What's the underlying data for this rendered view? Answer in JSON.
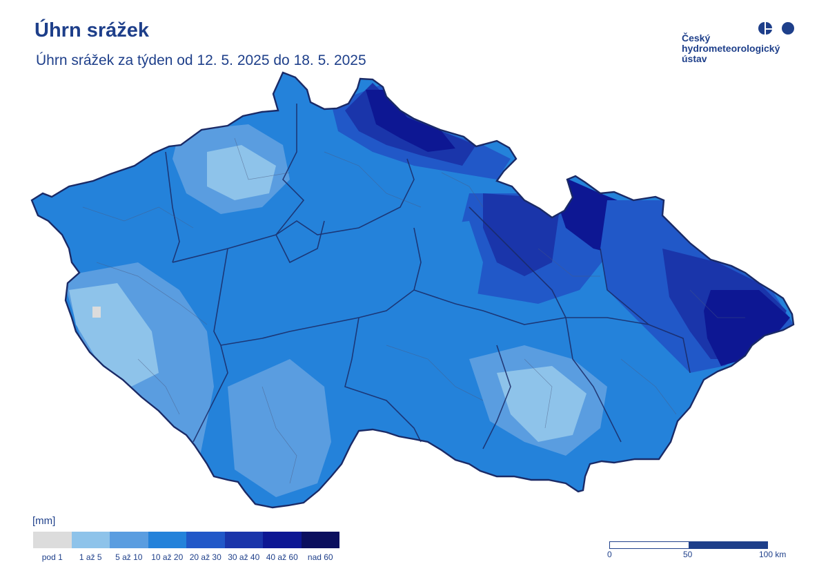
{
  "header": {
    "title": "Úhrn srážek",
    "subtitle": "Úhrn srážek za týden od 12. 5. 2025 do 18. 5. 2025"
  },
  "logo": {
    "line1": "Český",
    "line2": "hydrometeorologický",
    "line3": "ústav"
  },
  "legend": {
    "unit": "[mm]",
    "classes": [
      {
        "label": "pod 1",
        "color": "#dcdcdc"
      },
      {
        "label": "1 až 5",
        "color": "#8ec3ea"
      },
      {
        "label": "5 až 10",
        "color": "#5a9de0"
      },
      {
        "label": "10 až 20",
        "color": "#2482da"
      },
      {
        "label": "20 až 30",
        "color": "#2158c8"
      },
      {
        "label": "30 až 40",
        "color": "#1a35aa"
      },
      {
        "label": "40 až 60",
        "color": "#0d1793"
      },
      {
        "label": "nad 60",
        "color": "#0b0f5e"
      }
    ]
  },
  "scale_bar": {
    "label_0": "0",
    "label_50": "50",
    "label_100": "100 km"
  },
  "colors": {
    "brand": "#1e3f8a",
    "border": "#1a2a66"
  }
}
